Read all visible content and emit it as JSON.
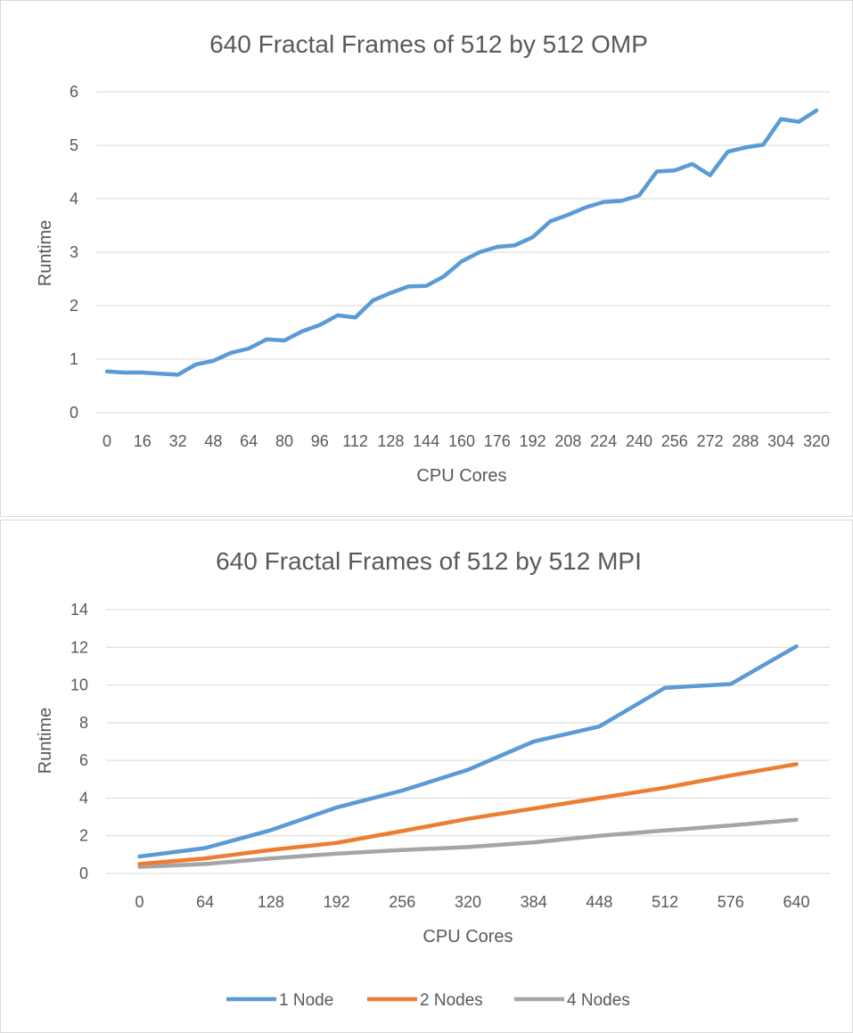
{
  "chart_data": [
    {
      "type": "line",
      "title": "640 Fractal Frames of 512 by 512 OMP",
      "xlabel": "CPU Cores",
      "ylabel": "Runtime",
      "ylim": [
        0,
        6
      ],
      "yticks": [
        0,
        1,
        2,
        3,
        4,
        5,
        6
      ],
      "xticks": [
        0,
        16,
        32,
        48,
        64,
        80,
        96,
        112,
        128,
        144,
        160,
        176,
        192,
        208,
        224,
        240,
        256,
        272,
        288,
        304,
        320
      ],
      "grid": "horizontal",
      "legend": "none",
      "series": [
        {
          "color": "#5b9bd5",
          "x": [
            0,
            8,
            16,
            24,
            32,
            40,
            48,
            56,
            64,
            72,
            80,
            88,
            96,
            104,
            112,
            120,
            128,
            136,
            144,
            152,
            160,
            168,
            176,
            184,
            192,
            200,
            208,
            216,
            224,
            232,
            240,
            248,
            256,
            264,
            272,
            280,
            288,
            296,
            304,
            312,
            320
          ],
          "values": [
            0.77,
            0.75,
            0.75,
            0.73,
            0.71,
            0.9,
            0.97,
            1.12,
            1.2,
            1.37,
            1.35,
            1.52,
            1.64,
            1.82,
            1.78,
            2.1,
            2.24,
            2.36,
            2.37,
            2.55,
            2.83,
            3.0,
            3.1,
            3.13,
            3.28,
            3.58,
            3.7,
            3.84,
            3.94,
            3.96,
            4.06,
            4.51,
            4.53,
            4.65,
            4.44,
            4.88,
            4.96,
            5.01,
            5.49,
            5.44,
            5.65
          ]
        }
      ]
    },
    {
      "type": "line",
      "title": "640 Fractal Frames of 512 by 512 MPI",
      "xlabel": "CPU Cores",
      "ylabel": "Runtime",
      "ylim": [
        0,
        14
      ],
      "yticks": [
        0,
        2,
        4,
        6,
        8,
        10,
        12,
        14
      ],
      "categories": [
        "0",
        "64",
        "128",
        "192",
        "256",
        "320",
        "384",
        "448",
        "512",
        "576",
        "640"
      ],
      "grid": "horizontal",
      "legend": "bottom",
      "series": [
        {
          "name": "1 Node",
          "color": "#5b9bd5",
          "values": [
            0.9,
            1.35,
            2.3,
            3.5,
            4.4,
            5.5,
            7.0,
            7.8,
            9.85,
            10.05,
            12.05
          ]
        },
        {
          "name": "2 Nodes",
          "color": "#ed7d31",
          "values": [
            0.5,
            0.8,
            1.25,
            1.62,
            2.25,
            2.9,
            3.45,
            4.0,
            4.55,
            5.2,
            5.8
          ]
        },
        {
          "name": "4 Nodes",
          "color": "#a5a5a5",
          "values": [
            0.35,
            0.5,
            0.8,
            1.05,
            1.25,
            1.4,
            1.65,
            2.0,
            2.28,
            2.55,
            2.85
          ]
        }
      ]
    }
  ]
}
